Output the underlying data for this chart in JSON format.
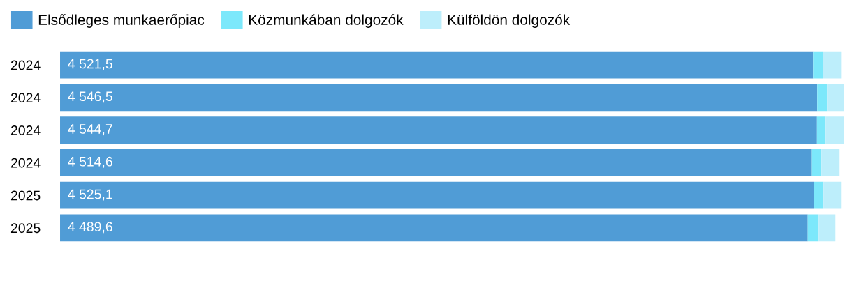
{
  "chart_data": {
    "type": "bar",
    "orientation": "horizontal",
    "stacked": true,
    "legend": "top left",
    "categories": [
      "2024",
      "2024",
      "2024",
      "2024",
      "2025",
      "2025"
    ],
    "series": [
      {
        "name": "Elsődleges munkaerőpiac",
        "color": "#509cd6",
        "values": [
          4521.5,
          4546.5,
          4544.7,
          4514.6,
          4525.1,
          4489.6
        ],
        "value_labels": [
          "4 521,5",
          "4 546,5",
          "4 544,7",
          "4 514,6",
          "4 525,1",
          "4 489,6"
        ]
      },
      {
        "name": "Közmunkában dolgozók",
        "color": "#7ce8fb",
        "values": [
          59,
          59,
          52,
          57,
          59,
          65
        ]
      },
      {
        "name": "Külföldön dolgozók",
        "color": "#bdeefb",
        "values": [
          109,
          101,
          109,
          109,
          105,
          101
        ]
      }
    ]
  }
}
